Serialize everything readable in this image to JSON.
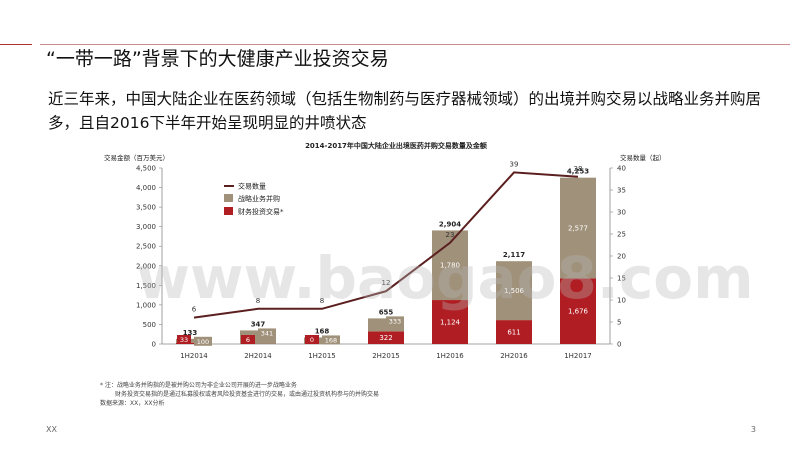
{
  "slide": {
    "title": "“一带一路”背景下的大健康产业投资交易",
    "body": "近三年来，中国大陆企业在医药领域（包括生物制药与医疗器械领域）的出境并购交易以战略业务并购居多，且自2016下半年开始呈现明显的井喷状态",
    "footnote_1": "* 注：战略业务并购指的是被并购公司为非企业公司开展的进一步战略业务",
    "footnote_2": "财务投资交易指的是通过私募股权或者风险投资基金进行的交易，或由通过投资机构参与的并购交易",
    "source": "数据来源：XX，XX分析",
    "footer_left": "XX",
    "page_number": "3",
    "watermark": "www.baogao8.com"
  },
  "colors": {
    "strategic": "#a0917a",
    "financial": "#b01e23",
    "line": "#5b1f1f",
    "accent": "#b0302f"
  },
  "chart_data": {
    "type": "bar",
    "title": "2014-2017年中国大陆企业出境医药并购交易数量及金额",
    "ylabel_left": "交易金额（百万美元）",
    "ylabel_right": "交易数量（起）",
    "categories": [
      "1H2014",
      "2H2014",
      "1H2015",
      "2H2015",
      "1H2016",
      "2H2016",
      "1H2017"
    ],
    "ylim_left": [
      0,
      4500
    ],
    "yticks_left": [
      0,
      500,
      1000,
      1500,
      2000,
      2500,
      3000,
      3500,
      4000,
      4500
    ],
    "ylim_right": [
      0,
      40
    ],
    "yticks_right": [
      0,
      5,
      10,
      15,
      20,
      25,
      30,
      35,
      40
    ],
    "legend_position": "top-left",
    "stacked": true,
    "series": [
      {
        "name": "财务投资交易*",
        "key": "financial",
        "values": [
          33,
          6,
          0,
          322,
          1124,
          611,
          1676
        ]
      },
      {
        "name": "战略业务并购",
        "key": "strategic",
        "values": [
          100,
          341,
          168,
          333,
          1780,
          1506,
          2577
        ]
      }
    ],
    "bar_labels_financial": [
      "33",
      "6",
      "0",
      "322",
      "1,124",
      "611",
      "1,676"
    ],
    "bar_labels_strategic": [
      "100",
      "341",
      "168",
      "333",
      "1,780",
      "1,506",
      "2,577"
    ],
    "totals": [
      "133",
      "347",
      "168",
      "655",
      "2,904",
      "2,117",
      "4,253"
    ],
    "line_series": {
      "name": "交易数量",
      "values": [
        6,
        8,
        8,
        12,
        23,
        39,
        38
      ]
    }
  }
}
